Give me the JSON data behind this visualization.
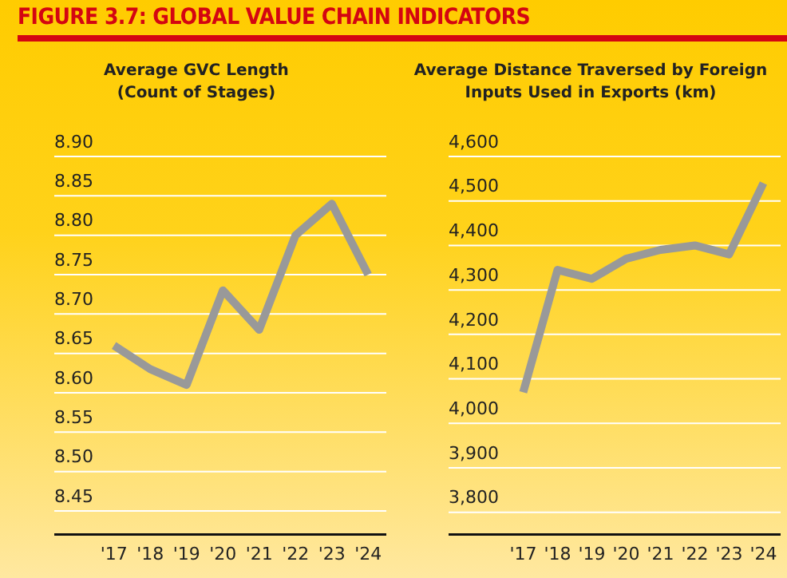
{
  "chart_data": [
    {
      "type": "line",
      "title": "Average GVC Length\n(Count of Stages)",
      "annotations": [
        "FIGURE 3.7: GLOBAL VALUE CHAIN INDICATORS"
      ],
      "categories": [
        "'17",
        "'18",
        "'19",
        "'20",
        "'21",
        "'22",
        "'23",
        "'24"
      ],
      "series": [
        {
          "color": "#999999",
          "values": [
            8.66,
            8.63,
            8.61,
            8.73,
            8.68,
            8.8,
            8.84,
            8.75
          ]
        }
      ],
      "ylim": [
        8.42,
        8.9
      ],
      "yticks": [
        {
          "value": 8.45,
          "label": "8.45"
        },
        {
          "value": 8.5,
          "label": "8.50"
        },
        {
          "value": 8.55,
          "label": "8.55"
        },
        {
          "value": 8.6,
          "label": "8.60"
        },
        {
          "value": 8.65,
          "label": "8.65"
        },
        {
          "value": 8.7,
          "label": "8.70"
        },
        {
          "value": 8.75,
          "label": "8.75"
        },
        {
          "value": 8.8,
          "label": "8.80"
        },
        {
          "value": 8.85,
          "label": "8.85"
        },
        {
          "value": 8.9,
          "label": "8.90"
        }
      ],
      "grid": "y",
      "legend": false,
      "marker": "none",
      "line_style": "solid"
    },
    {
      "type": "line",
      "title": "Average Distance Traversed by Foreign\nInputs Used in Exports (km)",
      "categories": [
        "'17",
        "'18",
        "'19",
        "'20",
        "'21",
        "'22",
        "'23",
        "'24"
      ],
      "series": [
        {
          "color": "#999999",
          "values": [
            4070,
            4345,
            4325,
            4370,
            4390,
            4400,
            4380,
            4540
          ]
        }
      ],
      "ylim": [
        3750,
        4600
      ],
      "yticks": [
        {
          "value": 3800,
          "label": "3,800"
        },
        {
          "value": 3900,
          "label": "3,900"
        },
        {
          "value": 4000,
          "label": "4,000"
        },
        {
          "value": 4100,
          "label": "4,100"
        },
        {
          "value": 4200,
          "label": "4,200"
        },
        {
          "value": 4300,
          "label": "4,300"
        },
        {
          "value": 4400,
          "label": "4,400"
        },
        {
          "value": 4500,
          "label": "4,500"
        },
        {
          "value": 4600,
          "label": "4,600"
        }
      ],
      "grid": "y",
      "legend": false,
      "marker": "none",
      "line_style": "solid"
    }
  ]
}
